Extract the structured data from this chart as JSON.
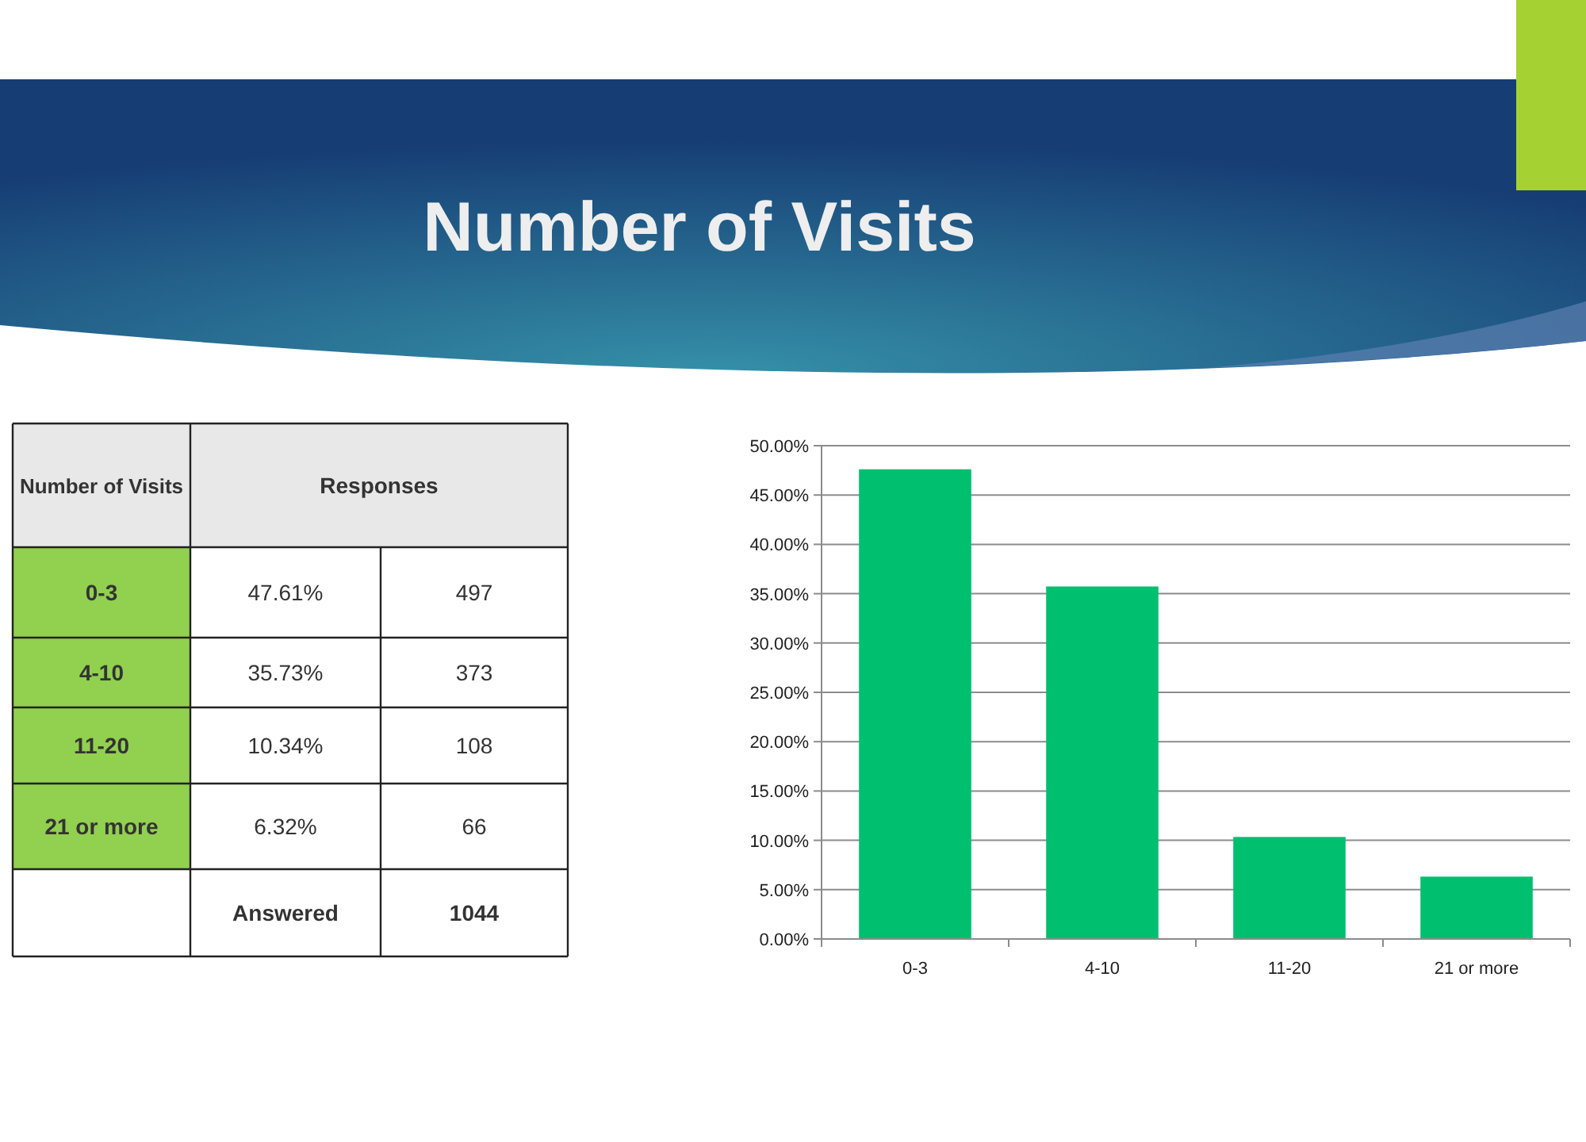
{
  "chart_data": {
    "type": "bar",
    "title": "Number of Visits",
    "categories": [
      "0-3",
      "4-10",
      "11-20",
      "21 or more"
    ],
    "values": [
      47.61,
      35.73,
      10.34,
      6.32
    ],
    "color": "#00bf6f",
    "ylim": [
      0,
      50
    ],
    "yticks": [
      {
        "value": 0,
        "label": "0.00%"
      },
      {
        "value": 5,
        "label": "5.00%"
      },
      {
        "value": 10,
        "label": "10.00%"
      },
      {
        "value": 15,
        "label": "15.00%"
      },
      {
        "value": 20,
        "label": "20.00%"
      },
      {
        "value": 25,
        "label": "25.00%"
      },
      {
        "value": 30,
        "label": "30.00%"
      },
      {
        "value": 35,
        "label": "35.00%"
      },
      {
        "value": 40,
        "label": "40.00%"
      },
      {
        "value": 45,
        "label": "45.00%"
      },
      {
        "value": 50,
        "label": "50.00%"
      }
    ],
    "grid": "y",
    "annotations": [
      "Number of Visits",
      "Responses",
      "47.61%",
      "35.73%",
      "10.34%",
      "6.32%",
      "497",
      "373",
      "108",
      "66",
      "Answered",
      "1044"
    ]
  }
}
